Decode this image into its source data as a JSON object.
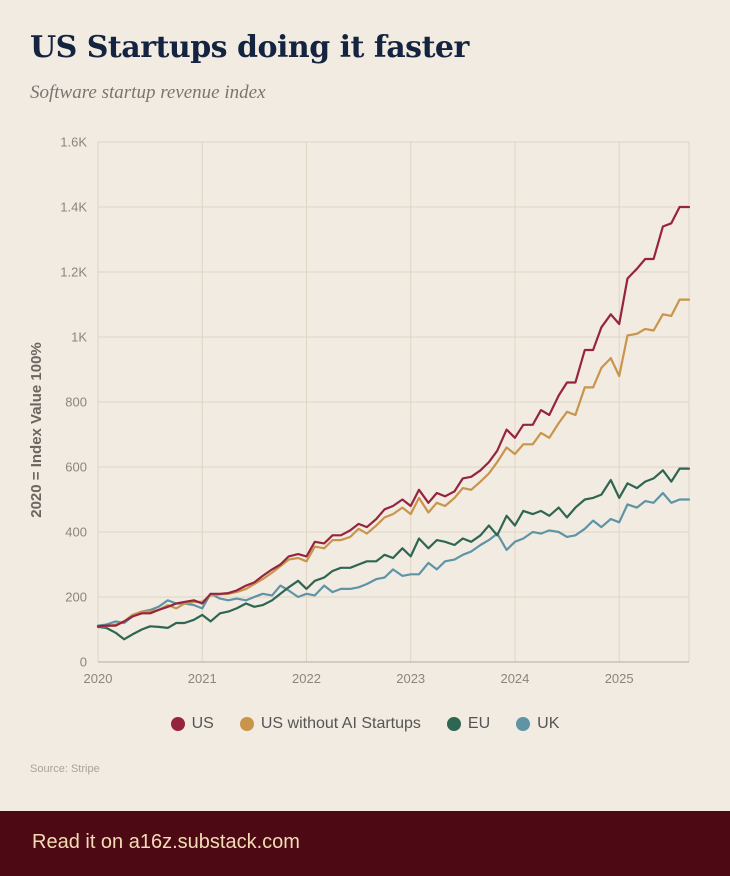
{
  "header": {
    "title": "US Startups doing it faster",
    "subtitle": "Software startup revenue index"
  },
  "source": "Source: Stripe",
  "footer": {
    "cta": "Read it on a16z.substack.com"
  },
  "colors": {
    "US": "#97243f",
    "US without AI Startups": "#c8954a",
    "EU": "#2f6651",
    "UK": "#5f94a6",
    "background": "#f1ebe2",
    "footer": "#4d0a14"
  },
  "chart_data": {
    "type": "line",
    "title": "US Startups doing it faster",
    "subtitle": "Software startup revenue index",
    "xlabel": "",
    "ylabel": "2020 = Index Value 100%",
    "xlim": [
      2020,
      2025.67
    ],
    "ylim": [
      0,
      1600
    ],
    "yticks": [
      0,
      200,
      400,
      600,
      800,
      1000,
      1200,
      1400,
      1600
    ],
    "ytick_labels": [
      "0",
      "200",
      "400",
      "600",
      "800",
      "1K",
      "1.2K",
      "1.4K",
      "1.6K"
    ],
    "xticks": [
      2020,
      2021,
      2022,
      2023,
      2024,
      2025
    ],
    "xtick_labels": [
      "2020",
      "2021",
      "2022",
      "2023",
      "2024",
      "2025"
    ],
    "grid": true,
    "legend_position": "bottom-center",
    "series": [
      {
        "name": "US",
        "color": "#97243f",
        "x": [
          2020.0,
          2020.08,
          2020.17,
          2020.25,
          2020.33,
          2020.42,
          2020.5,
          2020.58,
          2020.67,
          2020.75,
          2020.83,
          2020.92,
          2021.0,
          2021.08,
          2021.17,
          2021.25,
          2021.33,
          2021.42,
          2021.5,
          2021.58,
          2021.67,
          2021.75,
          2021.83,
          2021.92,
          2022.0,
          2022.08,
          2022.17,
          2022.25,
          2022.33,
          2022.42,
          2022.5,
          2022.58,
          2022.67,
          2022.75,
          2022.83,
          2022.92,
          2023.0,
          2023.08,
          2023.17,
          2023.25,
          2023.33,
          2023.42,
          2023.5,
          2023.58,
          2023.67,
          2023.75,
          2023.83,
          2023.92,
          2024.0,
          2024.08,
          2024.17,
          2024.25,
          2024.33,
          2024.42,
          2024.5,
          2024.58,
          2024.67,
          2024.75,
          2024.83,
          2024.92,
          2025.0,
          2025.08,
          2025.17,
          2025.25,
          2025.33,
          2025.42,
          2025.5,
          2025.58,
          2025.67
        ],
        "y": [
          110,
          112,
          112,
          125,
          140,
          150,
          150,
          160,
          170,
          180,
          185,
          190,
          180,
          210,
          210,
          212,
          220,
          235,
          245,
          265,
          285,
          300,
          325,
          332,
          325,
          370,
          365,
          390,
          390,
          405,
          425,
          415,
          440,
          470,
          480,
          500,
          480,
          530,
          490,
          520,
          510,
          525,
          565,
          570,
          590,
          615,
          650,
          715,
          690,
          730,
          730,
          775,
          760,
          820,
          860,
          860,
          960,
          960,
          1030,
          1070,
          1040,
          1180,
          1210,
          1240,
          1240,
          1340,
          1350,
          1400,
          1400
        ]
      },
      {
        "name": "US without AI Startups",
        "color": "#c8954a",
        "x": [
          2020.0,
          2020.08,
          2020.17,
          2020.25,
          2020.33,
          2020.42,
          2020.5,
          2020.58,
          2020.67,
          2020.75,
          2020.83,
          2020.92,
          2021.0,
          2021.08,
          2021.17,
          2021.25,
          2021.33,
          2021.42,
          2021.5,
          2021.58,
          2021.67,
          2021.75,
          2021.83,
          2021.92,
          2022.0,
          2022.08,
          2022.17,
          2022.25,
          2022.33,
          2022.42,
          2022.5,
          2022.58,
          2022.67,
          2022.75,
          2022.83,
          2022.92,
          2023.0,
          2023.08,
          2023.17,
          2023.25,
          2023.33,
          2023.42,
          2023.5,
          2023.58,
          2023.67,
          2023.75,
          2023.83,
          2023.92,
          2024.0,
          2024.08,
          2024.17,
          2024.25,
          2024.33,
          2024.42,
          2024.5,
          2024.58,
          2024.67,
          2024.75,
          2024.83,
          2024.92,
          2025.0,
          2025.08,
          2025.17,
          2025.25,
          2025.33,
          2025.42,
          2025.5,
          2025.58,
          2025.67
        ],
        "y": [
          110,
          110,
          115,
          125,
          145,
          155,
          155,
          160,
          175,
          165,
          180,
          185,
          185,
          205,
          208,
          210,
          215,
          225,
          240,
          255,
          275,
          295,
          315,
          320,
          310,
          355,
          350,
          375,
          375,
          385,
          410,
          395,
          420,
          445,
          455,
          475,
          455,
          505,
          460,
          490,
          480,
          505,
          535,
          530,
          555,
          580,
          615,
          660,
          640,
          670,
          670,
          705,
          690,
          735,
          770,
          760,
          845,
          845,
          905,
          935,
          880,
          1005,
          1010,
          1025,
          1020,
          1070,
          1065,
          1115,
          1115
        ]
      },
      {
        "name": "EU",
        "color": "#2f6651",
        "x": [
          2020.0,
          2020.08,
          2020.17,
          2020.25,
          2020.33,
          2020.42,
          2020.5,
          2020.58,
          2020.67,
          2020.75,
          2020.83,
          2020.92,
          2021.0,
          2021.08,
          2021.17,
          2021.25,
          2021.33,
          2021.42,
          2021.5,
          2021.58,
          2021.67,
          2021.75,
          2021.83,
          2021.92,
          2022.0,
          2022.08,
          2022.17,
          2022.25,
          2022.33,
          2022.42,
          2022.5,
          2022.58,
          2022.67,
          2022.75,
          2022.83,
          2022.92,
          2023.0,
          2023.08,
          2023.17,
          2023.25,
          2023.33,
          2023.42,
          2023.5,
          2023.58,
          2023.67,
          2023.75,
          2023.83,
          2023.92,
          2024.0,
          2024.08,
          2024.17,
          2024.25,
          2024.33,
          2024.42,
          2024.5,
          2024.58,
          2024.67,
          2024.75,
          2024.83,
          2024.92,
          2025.0,
          2025.08,
          2025.17,
          2025.25,
          2025.33,
          2025.42,
          2025.5,
          2025.58,
          2025.67
        ],
        "y": [
          108,
          105,
          90,
          70,
          85,
          100,
          110,
          108,
          105,
          120,
          120,
          130,
          145,
          125,
          150,
          155,
          165,
          180,
          170,
          175,
          190,
          210,
          230,
          250,
          225,
          250,
          260,
          280,
          290,
          290,
          300,
          310,
          310,
          330,
          320,
          350,
          325,
          380,
          350,
          375,
          370,
          360,
          380,
          370,
          390,
          420,
          390,
          450,
          420,
          465,
          455,
          465,
          450,
          475,
          445,
          475,
          500,
          505,
          515,
          560,
          505,
          550,
          535,
          555,
          565,
          590,
          555,
          595,
          595
        ]
      },
      {
        "name": "UK",
        "color": "#5f94a6",
        "x": [
          2020.0,
          2020.08,
          2020.17,
          2020.25,
          2020.33,
          2020.42,
          2020.5,
          2020.58,
          2020.67,
          2020.75,
          2020.83,
          2020.92,
          2021.0,
          2021.08,
          2021.17,
          2021.25,
          2021.33,
          2021.42,
          2021.5,
          2021.58,
          2021.67,
          2021.75,
          2021.83,
          2021.92,
          2022.0,
          2022.08,
          2022.17,
          2022.25,
          2022.33,
          2022.42,
          2022.5,
          2022.58,
          2022.67,
          2022.75,
          2022.83,
          2022.92,
          2023.0,
          2023.08,
          2023.17,
          2023.25,
          2023.33,
          2023.42,
          2023.5,
          2023.58,
          2023.67,
          2023.75,
          2023.83,
          2023.92,
          2024.0,
          2024.08,
          2024.17,
          2024.25,
          2024.33,
          2024.42,
          2024.5,
          2024.58,
          2024.67,
          2024.75,
          2024.83,
          2024.92,
          2025.0,
          2025.08,
          2025.17,
          2025.25,
          2025.33,
          2025.42,
          2025.5,
          2025.58,
          2025.67
        ],
        "y": [
          112,
          115,
          125,
          120,
          140,
          155,
          160,
          170,
          190,
          180,
          180,
          175,
          165,
          210,
          195,
          190,
          195,
          190,
          200,
          210,
          205,
          235,
          220,
          200,
          210,
          205,
          235,
          215,
          225,
          225,
          230,
          240,
          255,
          260,
          285,
          265,
          270,
          270,
          305,
          285,
          310,
          315,
          330,
          340,
          360,
          375,
          395,
          345,
          370,
          380,
          400,
          395,
          405,
          400,
          385,
          390,
          410,
          435,
          415,
          440,
          430,
          485,
          475,
          495,
          490,
          520,
          490,
          500,
          500
        ]
      }
    ]
  }
}
